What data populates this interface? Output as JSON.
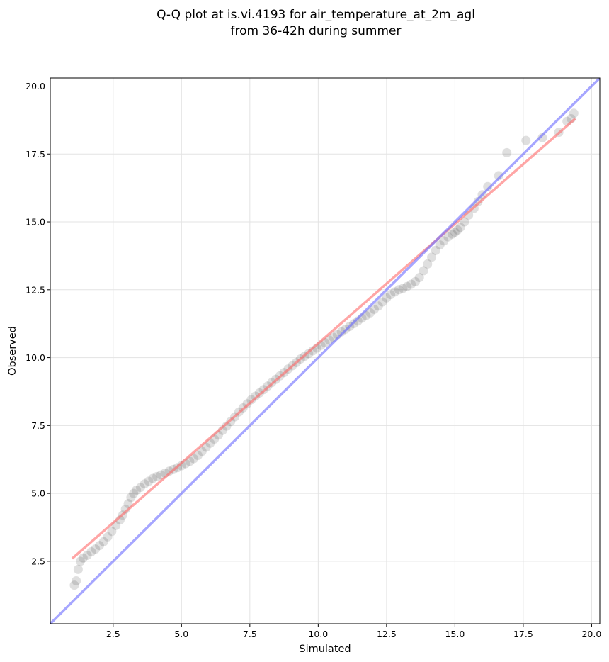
{
  "chart_data": {
    "type": "scatter",
    "title_lines": [
      "Q-Q plot at is.vi.4193 for air_temperature_at_2m_agl",
      "from 36-42h during summer"
    ],
    "xlabel": "Simulated",
    "ylabel": "Observed",
    "xlim": [
      0.2,
      20.3
    ],
    "ylim": [
      0.2,
      20.3
    ],
    "x_ticks": [
      2.5,
      5.0,
      7.5,
      10.0,
      12.5,
      15.0,
      17.5,
      20.0
    ],
    "y_ticks": [
      2.5,
      5.0,
      7.5,
      10.0,
      12.5,
      15.0,
      17.5,
      20.0
    ],
    "grid": true,
    "colors": {
      "points": "#3a3a3a",
      "fit_line": "#ff6b6b",
      "identity_line": "#6a6aff"
    },
    "series": [
      {
        "kind": "points",
        "x": [
          1.08,
          1.15,
          1.22,
          1.3,
          1.4,
          1.55,
          1.7,
          1.85,
          2.0,
          2.15,
          2.3,
          2.45,
          2.6,
          2.75,
          2.85,
          2.95,
          3.05,
          3.15,
          3.25,
          3.35,
          3.5,
          3.65,
          3.8,
          3.95,
          4.1,
          4.25,
          4.4,
          4.55,
          4.7,
          4.85,
          5.0,
          5.15,
          5.3,
          5.45,
          5.6,
          5.75,
          5.9,
          6.05,
          6.2,
          6.35,
          6.5,
          6.65,
          6.8,
          6.95,
          7.1,
          7.25,
          7.4,
          7.55,
          7.7,
          7.85,
          8.0,
          8.15,
          8.3,
          8.45,
          8.6,
          8.75,
          8.9,
          9.05,
          9.2,
          9.35,
          9.5,
          9.65,
          9.8,
          9.95,
          10.1,
          10.25,
          10.4,
          10.55,
          10.7,
          10.85,
          11.0,
          11.15,
          11.3,
          11.45,
          11.6,
          11.75,
          11.9,
          12.05,
          12.2,
          12.35,
          12.5,
          12.65,
          12.8,
          12.95,
          13.1,
          13.25,
          13.4,
          13.55,
          13.7,
          13.85,
          14.0,
          14.15,
          14.3,
          14.45,
          14.6,
          14.75,
          14.9,
          15.0,
          15.1,
          15.2,
          15.35,
          15.5,
          15.7,
          15.85,
          16.0,
          16.2,
          16.6,
          16.9,
          17.6,
          18.2,
          18.8,
          19.1,
          19.25,
          19.35
        ],
        "y": [
          1.62,
          1.78,
          2.2,
          2.5,
          2.62,
          2.72,
          2.85,
          2.95,
          3.08,
          3.22,
          3.4,
          3.6,
          3.82,
          4.02,
          4.2,
          4.42,
          4.62,
          4.85,
          5.0,
          5.12,
          5.22,
          5.35,
          5.45,
          5.55,
          5.62,
          5.68,
          5.75,
          5.82,
          5.88,
          5.95,
          6.02,
          6.1,
          6.18,
          6.28,
          6.4,
          6.55,
          6.7,
          6.85,
          7.0,
          7.15,
          7.32,
          7.48,
          7.65,
          7.82,
          8.0,
          8.15,
          8.3,
          8.45,
          8.58,
          8.7,
          8.82,
          8.95,
          9.08,
          9.2,
          9.33,
          9.45,
          9.58,
          9.7,
          9.82,
          9.95,
          10.05,
          10.15,
          10.25,
          10.35,
          10.45,
          10.55,
          10.65,
          10.75,
          10.85,
          10.95,
          11.05,
          11.15,
          11.25,
          11.35,
          11.45,
          11.55,
          11.65,
          11.78,
          11.9,
          12.05,
          12.2,
          12.32,
          12.42,
          12.5,
          12.55,
          12.62,
          12.7,
          12.8,
          12.95,
          13.2,
          13.45,
          13.7,
          13.95,
          14.15,
          14.3,
          14.45,
          14.55,
          14.62,
          14.7,
          14.8,
          15.0,
          15.25,
          15.5,
          15.75,
          16.0,
          16.3,
          16.7,
          17.55,
          18.0,
          18.1,
          18.3,
          18.7,
          18.8,
          19.0
        ]
      },
      {
        "kind": "fit_line",
        "x": [
          1.0,
          19.4
        ],
        "y": [
          2.6,
          18.8
        ]
      },
      {
        "kind": "identity_line",
        "x": [
          0.2,
          20.3
        ],
        "y": [
          0.2,
          20.3
        ]
      }
    ]
  }
}
